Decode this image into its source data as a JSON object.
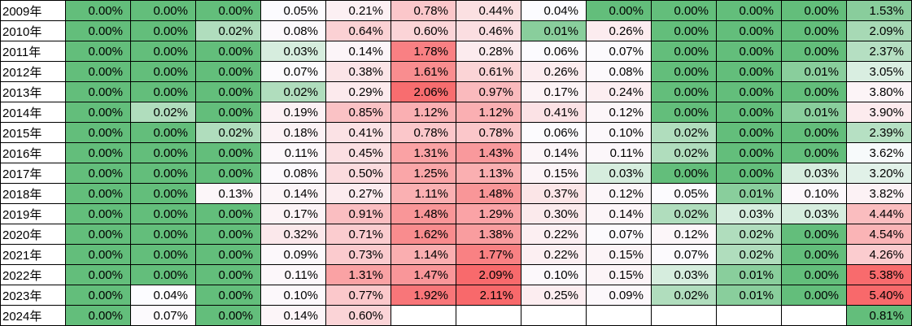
{
  "chart_data": {
    "type": "heatmap",
    "unit": "percent",
    "value_format": "0.00%",
    "row_labels": [
      "2009年",
      "2010年",
      "2011年",
      "2012年",
      "2013年",
      "2014年",
      "2015年",
      "2016年",
      "2017年",
      "2018年",
      "2019年",
      "2020年",
      "2021年",
      "2022年",
      "2023年",
      "2024年"
    ],
    "values": [
      [
        0.0,
        0.0,
        0.0,
        0.05,
        0.21,
        0.78,
        0.44,
        0.04,
        0.0,
        0.0,
        0.0,
        0.0
      ],
      [
        0.0,
        0.0,
        0.02,
        0.08,
        0.64,
        0.6,
        0.46,
        0.01,
        0.26,
        0.0,
        0.0,
        0.0
      ],
      [
        0.0,
        0.0,
        0.0,
        0.03,
        0.14,
        1.78,
        0.28,
        0.06,
        0.07,
        0.0,
        0.0,
        0.0
      ],
      [
        0.0,
        0.0,
        0.0,
        0.07,
        0.38,
        1.61,
        0.61,
        0.26,
        0.08,
        0.0,
        0.0,
        0.01
      ],
      [
        0.0,
        0.0,
        0.0,
        0.02,
        0.29,
        2.06,
        0.97,
        0.17,
        0.24,
        0.0,
        0.0,
        0.0
      ],
      [
        0.0,
        0.02,
        0.0,
        0.19,
        0.85,
        1.12,
        1.12,
        0.41,
        0.12,
        0.0,
        0.0,
        0.01
      ],
      [
        0.0,
        0.0,
        0.02,
        0.18,
        0.41,
        0.78,
        0.78,
        0.06,
        0.1,
        0.02,
        0.0,
        0.0
      ],
      [
        0.0,
        0.0,
        0.0,
        0.11,
        0.45,
        1.31,
        1.43,
        0.14,
        0.11,
        0.02,
        0.0,
        0.0
      ],
      [
        0.0,
        0.0,
        0.0,
        0.08,
        0.5,
        1.25,
        1.13,
        0.15,
        0.03,
        0.0,
        0.0,
        0.03
      ],
      [
        0.0,
        0.0,
        0.13,
        0.14,
        0.27,
        1.11,
        1.48,
        0.37,
        0.12,
        0.05,
        0.01,
        0.1
      ],
      [
        0.0,
        0.0,
        0.0,
        0.17,
        0.91,
        1.48,
        1.29,
        0.3,
        0.14,
        0.02,
        0.03,
        0.03
      ],
      [
        0.0,
        0.0,
        0.0,
        0.32,
        0.71,
        1.62,
        1.38,
        0.22,
        0.07,
        0.12,
        0.02,
        0.0
      ],
      [
        0.0,
        0.0,
        0.0,
        0.09,
        0.73,
        1.14,
        1.77,
        0.22,
        0.15,
        0.07,
        0.02,
        0.0
      ],
      [
        0.0,
        0.0,
        0.0,
        0.11,
        1.31,
        1.47,
        2.09,
        0.1,
        0.15,
        0.03,
        0.01,
        0.0
      ],
      [
        0.0,
        0.04,
        0.0,
        0.1,
        0.77,
        1.92,
        2.11,
        0.25,
        0.09,
        0.02,
        0.01,
        0.0
      ],
      [
        0.0,
        0.07,
        0.0,
        0.14,
        0.6,
        null,
        null,
        null,
        null,
        null,
        null,
        null
      ]
    ],
    "row_totals": [
      1.53,
      2.09,
      2.37,
      3.05,
      3.8,
      3.9,
      2.39,
      3.62,
      3.2,
      3.82,
      4.44,
      4.54,
      4.26,
      5.38,
      5.4,
      0.81
    ],
    "color_scale": {
      "min_color": "#63BE7B",
      "mid_color": "#FCFCFF",
      "max_color": "#F8696B",
      "midpoint": "50th percentile",
      "totals_have_own_scale": true
    },
    "layout": {
      "border_color": "#000000",
      "label_column_bg": "#FFFFFF",
      "grid": true
    }
  }
}
